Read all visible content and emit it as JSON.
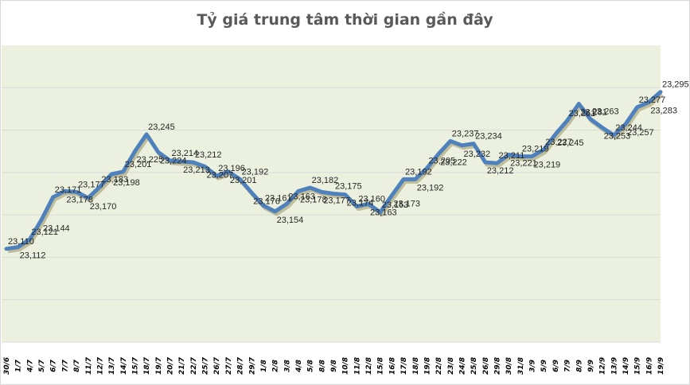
{
  "chart_data": {
    "type": "line",
    "title": "Tỷ giá trung tâm thời gian gần đây",
    "xlabel": "",
    "ylabel": "",
    "ylim": [
      23000,
      23350
    ],
    "grid": true,
    "legend": false,
    "categories": [
      "30/6",
      "1/7",
      "4/7",
      "5/7",
      "6/7",
      "7/7",
      "8/7",
      "11/7",
      "12/7",
      "13/7",
      "14/7",
      "15/7",
      "18/7",
      "19/7",
      "20/7",
      "21/7",
      "22/7",
      "25/7",
      "26/7",
      "27/7",
      "28/7",
      "29/7",
      "1/8",
      "2/8",
      "3/8",
      "4/8",
      "5/8",
      "8/8",
      "9/8",
      "10/8",
      "11/8",
      "12/8",
      "15/8",
      "16/8",
      "17/8",
      "18/8",
      "19/8",
      "22/8",
      "23/8",
      "24/8",
      "25/8",
      "26/8",
      "29/8",
      "30/8",
      "31/8",
      "3/9",
      "5/9",
      "6/9",
      "7/9",
      "8/9",
      "9/9",
      "12/9",
      "13/9",
      "14/9",
      "15/9",
      "16/9",
      "19/9"
    ],
    "series": [
      {
        "name": "Tỷ giá trung tâm",
        "color": "#4f81bd",
        "values": [
          23110,
          23112,
          23121,
          23144,
          23171,
          23178,
          23177,
          23170,
          23183,
          23198,
          23201,
          23225,
          23245,
          23224,
          23214,
          23213,
          23212,
          23207,
          23196,
          23201,
          23192,
          23176,
          23161,
          23154,
          23163,
          23178,
          23182,
          23177,
          23175,
          23174,
          23160,
          23163,
          23153,
          23173,
          23192,
          23192,
          23205,
          23222,
          23237,
          23232,
          23234,
          23212,
          23211,
          23221,
          23219,
          23219,
          23227,
          23245,
          23261,
          23281,
          23263,
          23253,
          23244,
          23257,
          23277,
          23283,
          23295
        ]
      }
    ]
  },
  "colors": {
    "plot_bg": "#ebf1de",
    "line": "#4f81bd",
    "grid": "#d9d9d9",
    "title": "#595959"
  }
}
